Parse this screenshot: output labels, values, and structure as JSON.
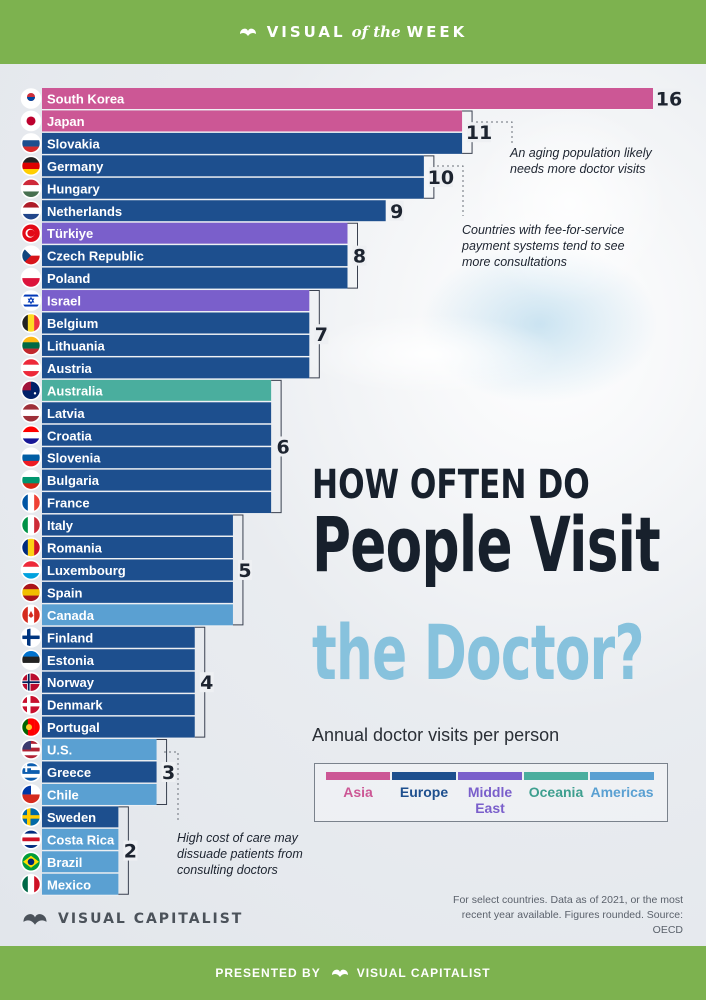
{
  "header": {
    "visual": "VISUAL",
    "of_the": "of the",
    "week": "WEEK"
  },
  "footer": {
    "presented_by": "PRESENTED BY",
    "brand": "VISUAL CAPITALIST"
  },
  "title": {
    "line1": "HOW OFTEN DO",
    "line2": "People Visit",
    "line3": "the Doctor?"
  },
  "subtitle": "Annual doctor visits per person",
  "brand_logo": "VISUAL CAPITALIST",
  "source": "For select countries.  Data as of 2021, or the most recent year available. Figures rounded. Source: OECD",
  "annotations": {
    "aging": "An aging population likely needs more doctor visits",
    "fee": "Countries with fee-for-service payment systems tend to see more consultations",
    "cost": "High cost of care may dissuade patients from consulting doctors"
  },
  "colors": {
    "Asia": "#cc5795",
    "Europe": "#1d4f8e",
    "Middle East": "#7a5fcb",
    "Oceania": "#4aae9e",
    "Americas": "#5aa0d2"
  },
  "legend": [
    {
      "label": "Asia",
      "color": "#cc5795",
      "text_color": "#cc5795"
    },
    {
      "label": "Europe",
      "color": "#1d4f8e",
      "text_color": "#1d4f8e"
    },
    {
      "label": "Middle East",
      "color": "#7a5fcb",
      "text_color": "#7a5fcb"
    },
    {
      "label": "Oceania",
      "color": "#4aae9e",
      "text_color": "#3e9f8f"
    },
    {
      "label": "Americas",
      "color": "#5aa0d2",
      "text_color": "#5aa0d2"
    }
  ],
  "chart_data": {
    "type": "bar",
    "orientation": "horizontal",
    "title": "How Often Do People Visit the Doctor?",
    "subtitle": "Annual doctor visits per person",
    "categories": [
      "South Korea",
      "Japan",
      "Slovakia",
      "Germany",
      "Hungary",
      "Netherlands",
      "Türkiye",
      "Czech Republic",
      "Poland",
      "Israel",
      "Belgium",
      "Lithuania",
      "Austria",
      "Australia",
      "Latvia",
      "Croatia",
      "Slovenia",
      "Bulgaria",
      "France",
      "Italy",
      "Romania",
      "Luxembourg",
      "Spain",
      "Canada",
      "Finland",
      "Estonia",
      "Norway",
      "Denmark",
      "Portugal",
      "U.S.",
      "Greece",
      "Chile",
      "Sweden",
      "Costa Rica",
      "Brazil",
      "Mexico"
    ],
    "values": [
      16,
      11,
      11,
      10,
      10,
      9,
      8,
      8,
      8,
      7,
      7,
      7,
      7,
      6,
      6,
      6,
      6,
      6,
      6,
      5,
      5,
      5,
      5,
      5,
      4,
      4,
      4,
      4,
      4,
      3,
      3,
      3,
      2,
      2,
      2,
      2
    ],
    "regions": [
      "Asia",
      "Asia",
      "Europe",
      "Europe",
      "Europe",
      "Europe",
      "Middle East",
      "Europe",
      "Europe",
      "Middle East",
      "Europe",
      "Europe",
      "Europe",
      "Oceania",
      "Europe",
      "Europe",
      "Europe",
      "Europe",
      "Europe",
      "Europe",
      "Europe",
      "Europe",
      "Europe",
      "Americas",
      "Europe",
      "Europe",
      "Europe",
      "Europe",
      "Europe",
      "Americas",
      "Europe",
      "Americas",
      "Europe",
      "Americas",
      "Americas",
      "Americas"
    ],
    "group_labels": [
      {
        "value": 16,
        "countries": [
          "South Korea"
        ]
      },
      {
        "value": 11,
        "countries": [
          "Japan",
          "Slovakia"
        ]
      },
      {
        "value": 10,
        "countries": [
          "Germany",
          "Hungary"
        ]
      },
      {
        "value": 9,
        "countries": [
          "Netherlands"
        ]
      },
      {
        "value": 8,
        "countries": [
          "Türkiye",
          "Czech Republic",
          "Poland"
        ]
      },
      {
        "value": 7,
        "countries": [
          "Israel",
          "Belgium",
          "Lithuania",
          "Austria"
        ]
      },
      {
        "value": 6,
        "countries": [
          "Australia",
          "Latvia",
          "Croatia",
          "Slovenia",
          "Bulgaria",
          "France"
        ]
      },
      {
        "value": 5,
        "countries": [
          "Italy",
          "Romania",
          "Luxembourg",
          "Spain",
          "Canada"
        ]
      },
      {
        "value": 4,
        "countries": [
          "Finland",
          "Estonia",
          "Norway",
          "Denmark",
          "Portugal"
        ]
      },
      {
        "value": 3,
        "countries": [
          "U.S.",
          "Greece",
          "Chile"
        ]
      },
      {
        "value": 2,
        "countries": [
          "Sweden",
          "Costa Rica",
          "Brazil",
          "Mexico"
        ]
      }
    ],
    "xlim": [
      0,
      16
    ],
    "grid": false,
    "legend_position": "bottom-right"
  }
}
